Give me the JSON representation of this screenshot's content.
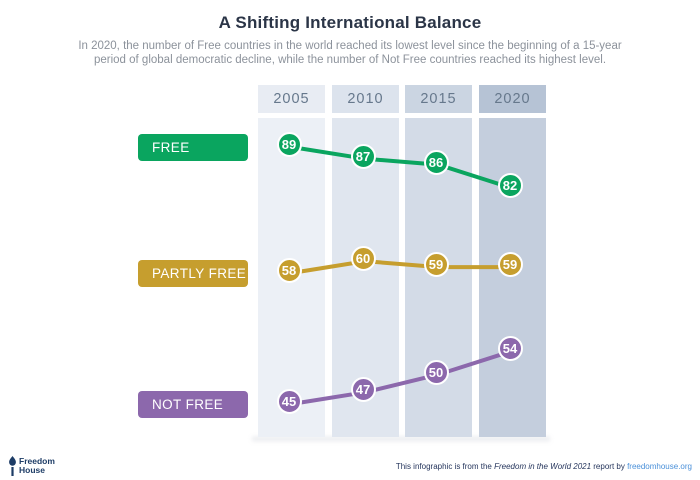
{
  "header": {
    "title": "A Shifting International Balance",
    "subtitle_line1": "In 2020, the number of Free countries in the world reached its lowest level since the beginning of a 15-year",
    "subtitle_line2": "period of global democratic decline, while the number of Not Free countries reached its highest level."
  },
  "chart_data": {
    "type": "line",
    "categories": [
      "2005",
      "2010",
      "2015",
      "2020"
    ],
    "series": [
      {
        "name": "FREE",
        "color": "#0aa55f",
        "values": [
          89,
          87,
          86,
          82
        ]
      },
      {
        "name": "PARTLY FREE",
        "color": "#c69e2e",
        "values": [
          58,
          60,
          59,
          59
        ]
      },
      {
        "name": "NOT FREE",
        "color": "#8c68ac",
        "values": [
          45,
          47,
          50,
          54
        ]
      }
    ],
    "legend_position": "left",
    "grid": "year-columns",
    "column_header_colors": [
      "#e8ecf3",
      "#dce3ed",
      "#cbd5e2",
      "#b6c3d5"
    ],
    "column_body_colors": [
      "#ecf0f6",
      "#e0e6ef",
      "#d3dbe7",
      "#c4cedd"
    ]
  },
  "footer": {
    "logo_line1": "Freedom",
    "logo_line2": "House",
    "attribution_prefix": "This infographic is from the ",
    "attribution_italic": "Freedom in the World 2021",
    "attribution_middle": " report by ",
    "attribution_link": "freedomhouse.org"
  }
}
